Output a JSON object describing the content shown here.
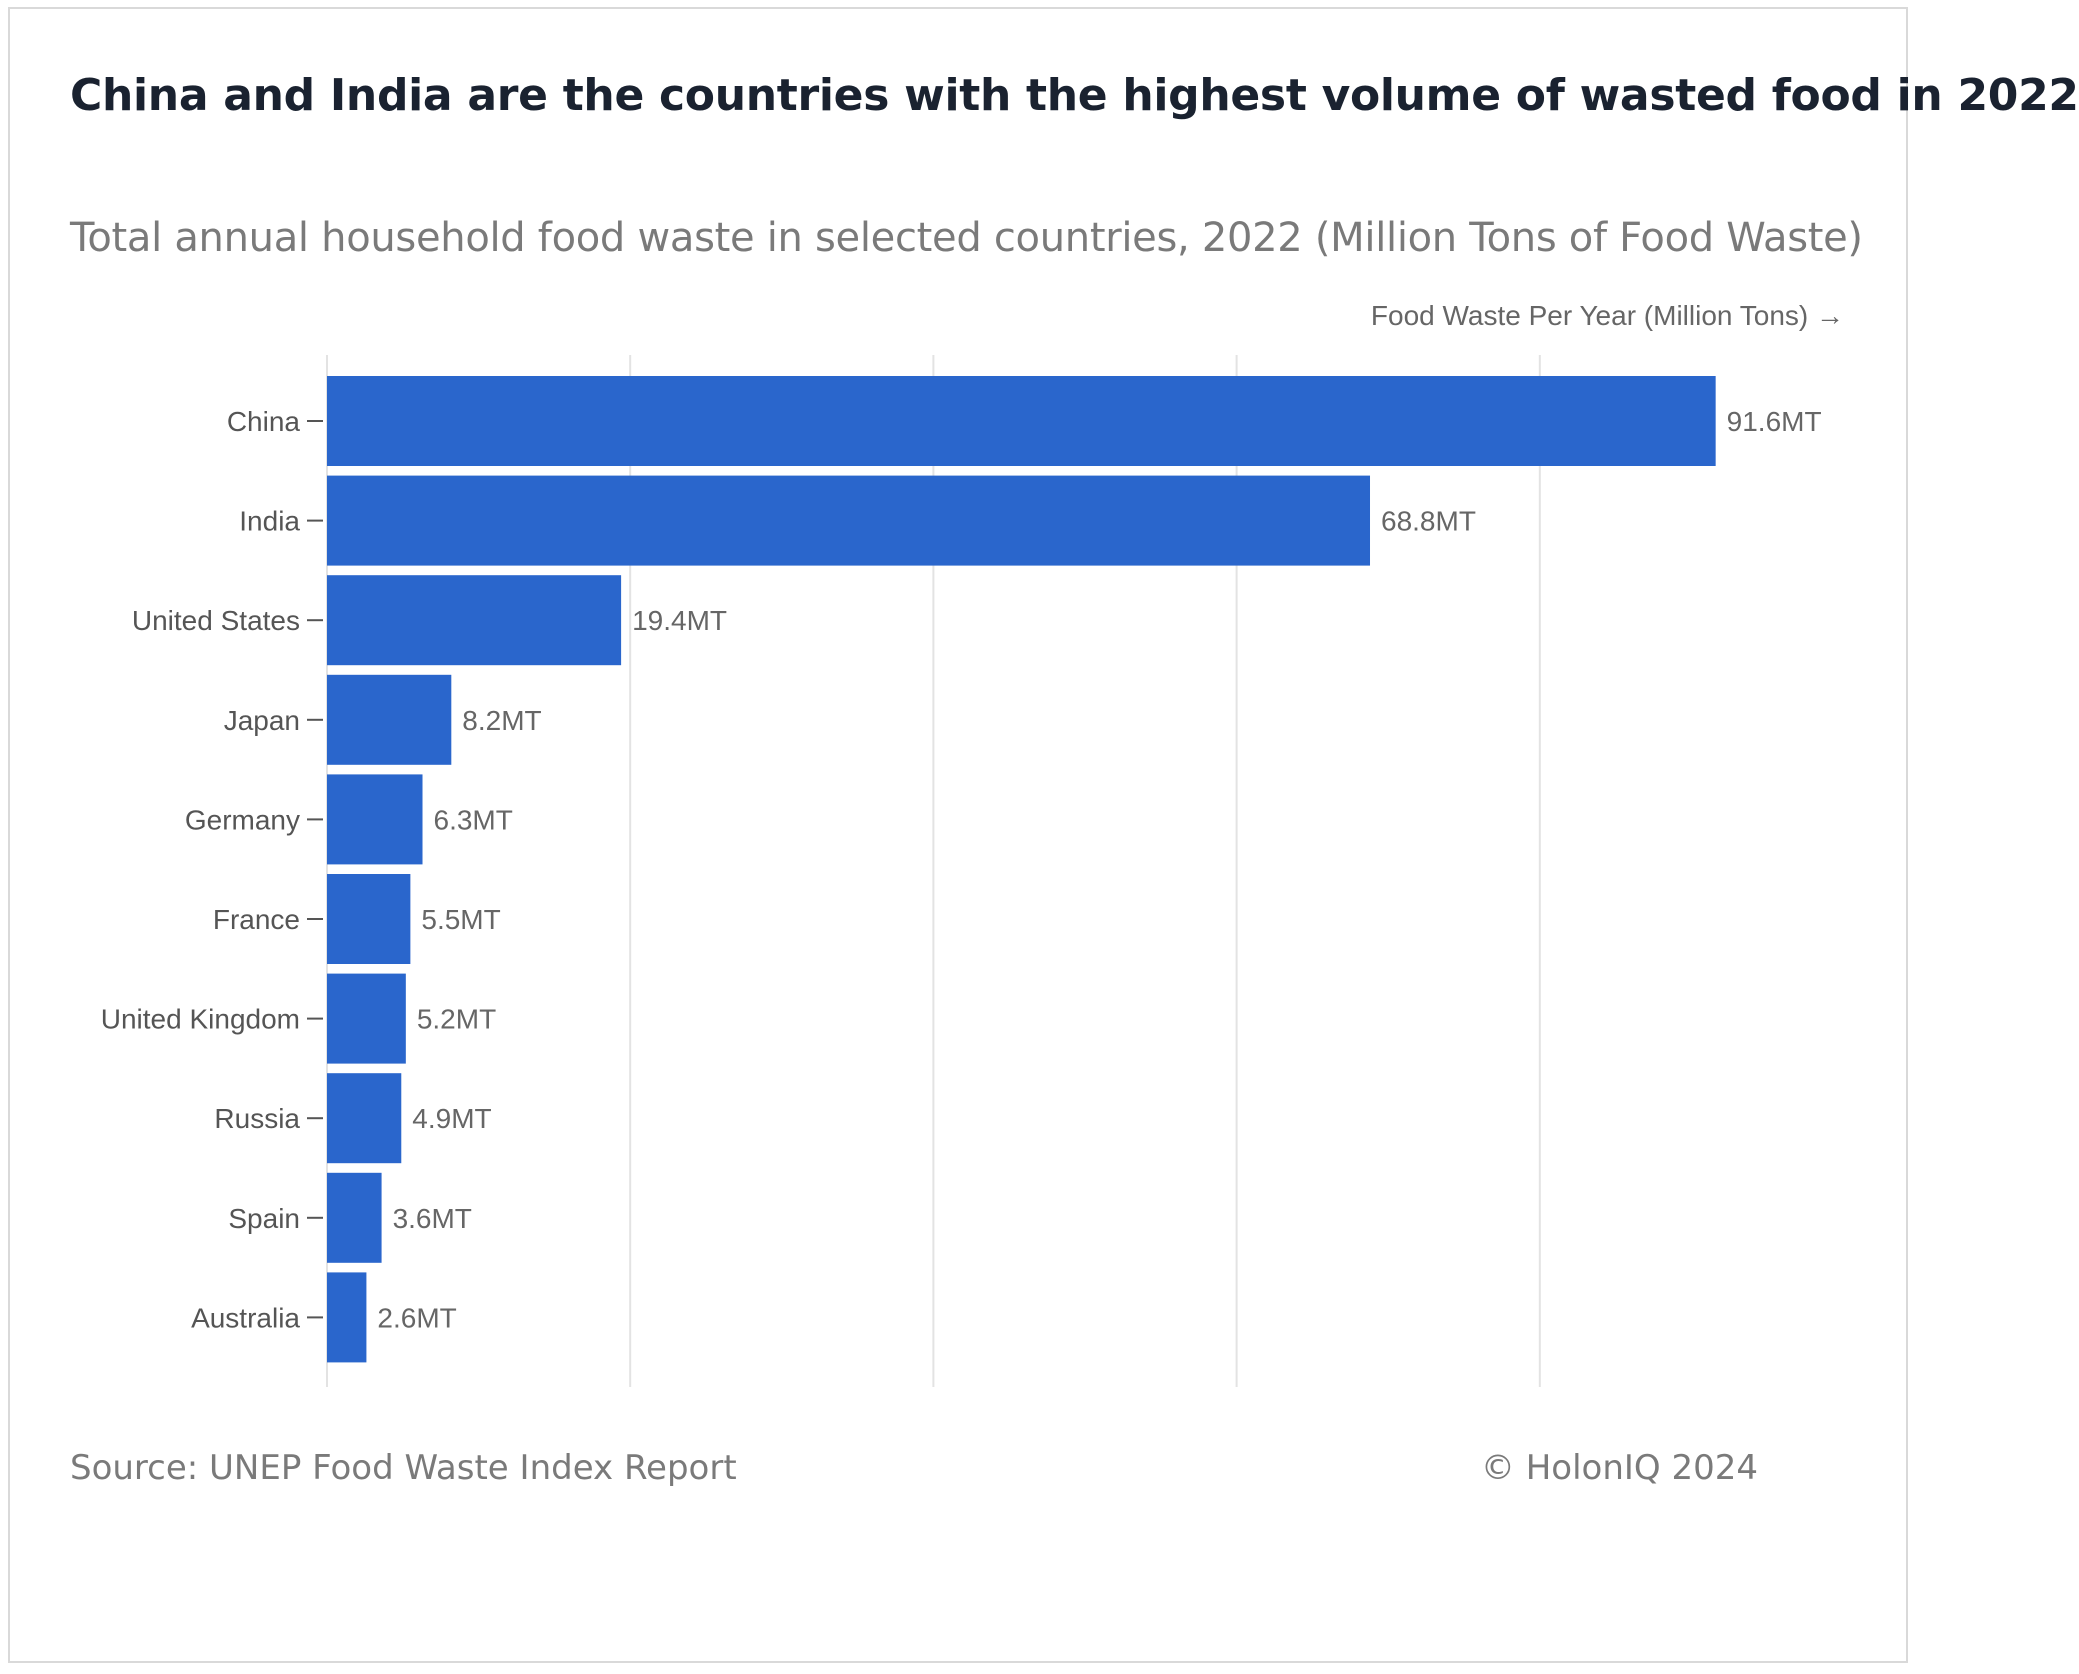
{
  "header": {
    "title": "China and India are the countries with the highest volume of wasted food in 2022",
    "subtitle": "Total annual household food waste in selected countries, 2022 (Million Tons of Food Waste)"
  },
  "footer": {
    "source": "Source: UNEP Food Waste Index Report",
    "copyright": "© HolonIQ 2024"
  },
  "colors": {
    "bar": "#2a66cc",
    "grid": "#e3e3e3",
    "axis": "#555555"
  },
  "chart_data": {
    "type": "bar",
    "orientation": "horizontal",
    "title": "China and India are the countries with the highest volume of wasted food in 2022",
    "subtitle": "Total annual household food waste in selected countries, 2022 (Million Tons of Food Waste)",
    "xlabel": "Food Waste Per Year (Million Tons) →",
    "ylabel": "",
    "categories": [
      "China",
      "India",
      "United States",
      "Japan",
      "Germany",
      "France",
      "United Kingdom",
      "Russia",
      "Spain",
      "Australia"
    ],
    "values": [
      91.6,
      68.8,
      19.4,
      8.2,
      6.3,
      5.5,
      5.2,
      4.9,
      3.6,
      2.6
    ],
    "value_labels": [
      "91.6MT",
      "68.8MT",
      "19.4MT",
      "8.2MT",
      "6.3MT",
      "5.5MT",
      "5.2MT",
      "4.9MT",
      "3.6MT",
      "2.6MT"
    ],
    "xlim": [
      0,
      100
    ],
    "gridlines_x": [
      0,
      20,
      40,
      60,
      80
    ],
    "grid": true,
    "legend": "none"
  }
}
